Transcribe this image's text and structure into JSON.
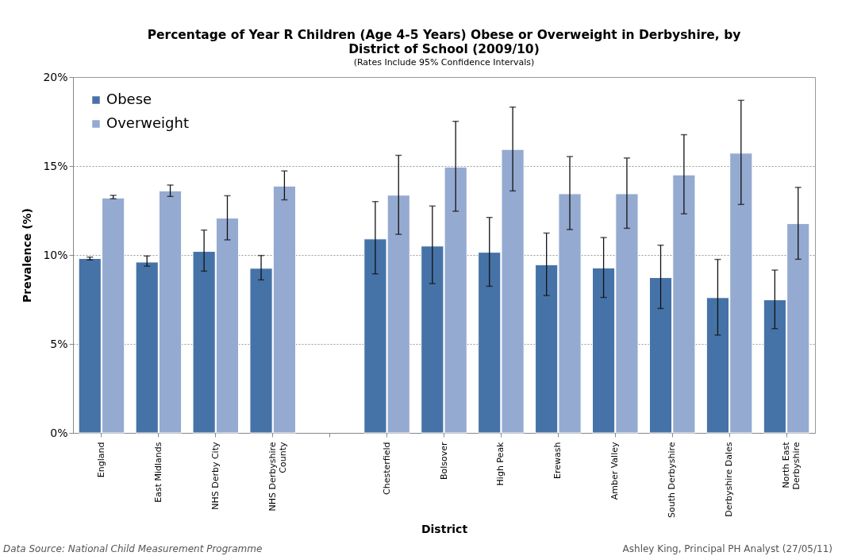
{
  "chart_data": {
    "type": "bar",
    "title": "Percentage of Year R Children (Age 4-5 Years) Obese or Overweight in Derbyshire, by District of School (2009/10)",
    "subtitle": "(Rates Include 95% Confidence Intervals)",
    "xlabel": "District",
    "ylabel": "Prevalence (%)",
    "categories": [
      "England",
      "East Midlands",
      "NHS Derby City",
      "NHS Derbyshire County",
      null,
      "Chesterfield",
      "Bolsover",
      "High Peak",
      "Erewash",
      "Amber Valley",
      "South Derbyshire",
      "Derbyshire Dales",
      "North East Derbyshire"
    ],
    "series": [
      {
        "name": "Obese",
        "color": "#4673a7",
        "values": [
          9.8,
          9.6,
          10.2,
          9.25,
          null,
          10.9,
          10.5,
          10.15,
          9.45,
          9.27,
          8.73,
          7.6,
          7.48
        ],
        "errors": [
          [
            9.72,
            9.88
          ],
          [
            9.37,
            9.94
          ],
          [
            9.09,
            11.4
          ],
          [
            8.6,
            9.97
          ],
          null,
          [
            8.94,
            13.0
          ],
          [
            8.39,
            12.75
          ],
          [
            8.24,
            12.11
          ],
          [
            7.72,
            11.23
          ],
          [
            7.61,
            10.98
          ],
          [
            6.99,
            10.55
          ],
          [
            5.5,
            9.75
          ],
          [
            5.86,
            9.15
          ]
        ]
      },
      {
        "name": "Overweight",
        "color": "#95aad1",
        "values": [
          13.2,
          13.6,
          12.07,
          13.87,
          null,
          13.36,
          14.94,
          15.93,
          13.44,
          13.44,
          14.5,
          15.72,
          11.76
        ],
        "errors": [
          [
            13.16,
            13.35
          ],
          [
            13.29,
            13.93
          ],
          [
            10.85,
            13.33
          ],
          [
            13.1,
            14.72
          ],
          null,
          [
            11.16,
            15.6
          ],
          [
            12.46,
            17.51
          ],
          [
            13.6,
            18.31
          ],
          [
            11.43,
            15.53
          ],
          [
            11.5,
            15.45
          ],
          [
            12.31,
            16.76
          ],
          [
            12.84,
            18.69
          ],
          [
            9.76,
            13.8
          ]
        ]
      }
    ],
    "ylim": [
      0,
      20
    ],
    "yticks": [
      {
        "value": 0,
        "label": "0%"
      },
      {
        "value": 5,
        "label": "5%"
      },
      {
        "value": 10,
        "label": "10%"
      },
      {
        "value": 15,
        "label": "15%"
      },
      {
        "value": 20,
        "label": "20%"
      }
    ],
    "grid": "y",
    "legend": "top left",
    "annotations": [
      "Data Source: National Child Measurement Programme",
      "Ashley King, Principal PH Analyst (27/05/11)"
    ]
  }
}
